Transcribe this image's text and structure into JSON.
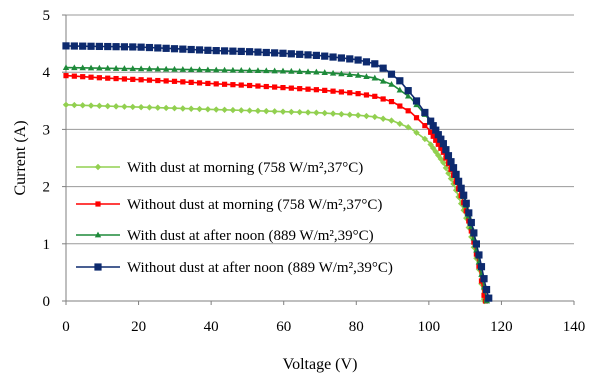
{
  "chart_data": {
    "type": "line",
    "title": "",
    "xlabel": "Voltage (V)",
    "ylabel": "Current (A)",
    "xlim": [
      0,
      140
    ],
    "ylim": [
      0,
      5
    ],
    "x_ticks": [
      "0",
      "20",
      "40",
      "60",
      "80",
      "100",
      "120",
      "140"
    ],
    "y_ticks": [
      "0",
      "1",
      "2",
      "3",
      "4",
      "5"
    ],
    "grid": "horizontal",
    "legend_position": "bottom-left inside",
    "series": [
      {
        "name": "With dust at morning (758 W/m²,37°C)",
        "color": "#92d050",
        "marker": "diamond",
        "points": [
          [
            0,
            3.43
          ],
          [
            10,
            3.41
          ],
          [
            20,
            3.39
          ],
          [
            30,
            3.37
          ],
          [
            40,
            3.35
          ],
          [
            50,
            3.33
          ],
          [
            60,
            3.31
          ],
          [
            70,
            3.29
          ],
          [
            80,
            3.25
          ],
          [
            85,
            3.22
          ],
          [
            90,
            3.15
          ],
          [
            95,
            3.02
          ],
          [
            100,
            2.78
          ],
          [
            104,
            2.42
          ],
          [
            107,
            2.02
          ],
          [
            110,
            1.52
          ],
          [
            112,
            1.05
          ],
          [
            114,
            0.5
          ],
          [
            115,
            0.1
          ],
          [
            115.3,
            0
          ]
        ]
      },
      {
        "name": "Without dust at morning (758 W/m²,37°C)",
        "color": "#ff0000",
        "marker": "square",
        "points": [
          [
            0,
            3.94
          ],
          [
            10,
            3.9
          ],
          [
            20,
            3.87
          ],
          [
            30,
            3.84
          ],
          [
            40,
            3.8
          ],
          [
            50,
            3.77
          ],
          [
            60,
            3.73
          ],
          [
            70,
            3.69
          ],
          [
            80,
            3.63
          ],
          [
            85,
            3.58
          ],
          [
            90,
            3.48
          ],
          [
            95,
            3.3
          ],
          [
            100,
            3.0
          ],
          [
            104,
            2.6
          ],
          [
            107,
            2.17
          ],
          [
            110,
            1.65
          ],
          [
            112,
            1.15
          ],
          [
            114,
            0.55
          ],
          [
            115,
            0.15
          ],
          [
            115.6,
            0
          ]
        ]
      },
      {
        "name": "With dust at after noon (889 W/m²,39°C)",
        "color": "#1e8a3a",
        "marker": "triangle",
        "points": [
          [
            0,
            4.08
          ],
          [
            10,
            4.07
          ],
          [
            20,
            4.06
          ],
          [
            30,
            4.05
          ],
          [
            40,
            4.04
          ],
          [
            50,
            4.03
          ],
          [
            60,
            4.02
          ],
          [
            70,
            4.0
          ],
          [
            80,
            3.95
          ],
          [
            85,
            3.9
          ],
          [
            90,
            3.78
          ],
          [
            95,
            3.55
          ],
          [
            100,
            3.18
          ],
          [
            104,
            2.75
          ],
          [
            107,
            2.3
          ],
          [
            110,
            1.75
          ],
          [
            112,
            1.22
          ],
          [
            114,
            0.62
          ],
          [
            115.5,
            0.15
          ],
          [
            116,
            0
          ]
        ]
      },
      {
        "name": "Without dust at after noon (889 W/m²,39°C)",
        "color": "#0d2a6e",
        "marker": "square-large",
        "points": [
          [
            0,
            4.46
          ],
          [
            10,
            4.45
          ],
          [
            20,
            4.44
          ],
          [
            30,
            4.41
          ],
          [
            40,
            4.38
          ],
          [
            50,
            4.36
          ],
          [
            60,
            4.33
          ],
          [
            70,
            4.29
          ],
          [
            80,
            4.22
          ],
          [
            85,
            4.15
          ],
          [
            88,
            4.05
          ],
          [
            92,
            3.85
          ],
          [
            96,
            3.55
          ],
          [
            100,
            3.2
          ],
          [
            104,
            2.75
          ],
          [
            107,
            2.3
          ],
          [
            110,
            1.78
          ],
          [
            112,
            1.3
          ],
          [
            114,
            0.75
          ],
          [
            115.5,
            0.3
          ],
          [
            116.5,
            0.05
          ]
        ]
      }
    ]
  }
}
